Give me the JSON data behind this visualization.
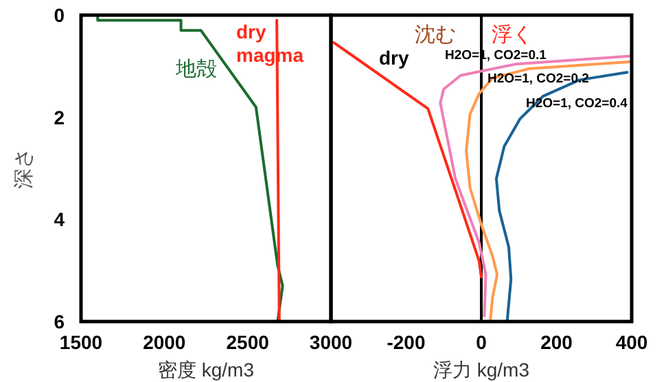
{
  "chart_data": [
    {
      "type": "line",
      "xlabel": "密度 kg/m3",
      "ylabel": "深さ",
      "xlim": [
        1500,
        3000
      ],
      "xticks": [
        1500,
        2000,
        2500,
        3000
      ],
      "ylim": [
        6,
        0
      ],
      "yticks": [
        0,
        2,
        4,
        6
      ],
      "grid": false,
      "series": [
        {
          "color": "#1a6b2e",
          "x": [
            1600,
            1600,
            2100,
            2100,
            2220,
            2550,
            2680,
            2710,
            2680
          ],
          "values": [
            0,
            0.1,
            0.1,
            0.3,
            0.3,
            1.8,
            4.9,
            5.3,
            6
          ]
        },
        {
          "color": "#ff2a1a",
          "x": [
            2675,
            2690
          ],
          "values": [
            0.1,
            6
          ]
        }
      ],
      "annotations": [
        "地殻",
        "dry",
        "magma"
      ]
    },
    {
      "type": "line",
      "xlabel": "浮力 kg/m3",
      "xlim": [
        -400,
        400
      ],
      "xticks": [
        -200,
        0,
        200,
        400
      ],
      "ylim": [
        6,
        0
      ],
      "tick_labels": "x",
      "grid": false,
      "ref_lines": [
        {
          "axis": "x",
          "value": 0,
          "color": "#000000"
        }
      ],
      "series": [
        {
          "color": "#ff2a1a",
          "x": [
            -392,
            -142,
            -67,
            -6,
            0
          ],
          "values": [
            0.54,
            1.83,
            3.47,
            4.81,
            5.13
          ]
        },
        {
          "color": "#f07fb8",
          "x": [
            400,
            91,
            -55,
            -100,
            -109,
            -91,
            -69,
            -42,
            -6,
            12,
            8
          ],
          "values": [
            0.8,
            0.96,
            1.18,
            1.45,
            1.72,
            2.39,
            3.2,
            3.74,
            4.45,
            5.08,
            5.89
          ]
        },
        {
          "color": "#ff9a50",
          "x": [
            400,
            127,
            30,
            -6,
            -30,
            -40,
            -30,
            0,
            30,
            42,
            30,
            24
          ],
          "values": [
            0.91,
            1.05,
            1.23,
            1.54,
            1.94,
            2.66,
            3.38,
            4.1,
            4.72,
            5.08,
            5.53,
            5.98
          ]
        },
        {
          "color": "#1a6396",
          "x": [
            388,
            261,
            164,
            103,
            61,
            40,
            48,
            73,
            79,
            69
          ],
          "values": [
            1.12,
            1.27,
            1.59,
            2.03,
            2.57,
            3.2,
            3.83,
            4.54,
            5.17,
            5.98
          ]
        }
      ],
      "annotations": [
        "沈む",
        "浮く",
        "dry",
        "H2O=1, CO2=0.1",
        "H2O=1, CO2=0.2",
        "H2O=1, CO2=0.4"
      ]
    }
  ]
}
